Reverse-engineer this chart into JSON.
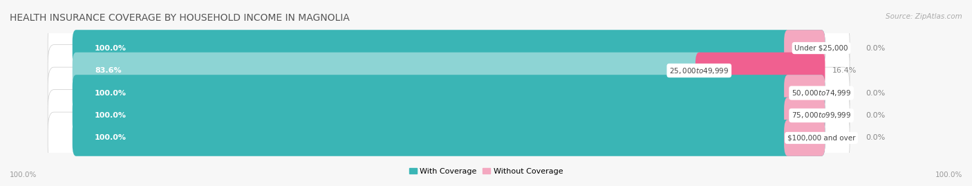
{
  "title": "HEALTH INSURANCE COVERAGE BY HOUSEHOLD INCOME IN MAGNOLIA",
  "source": "Source: ZipAtlas.com",
  "categories": [
    "Under $25,000",
    "$25,000 to $49,999",
    "$50,000 to $74,999",
    "$75,000 to $99,999",
    "$100,000 and over"
  ],
  "with_coverage": [
    100.0,
    83.6,
    100.0,
    100.0,
    100.0
  ],
  "without_coverage": [
    0.0,
    16.4,
    0.0,
    0.0,
    0.0
  ],
  "color_with": "#3ab5b5",
  "color_with_light": "#8dd4d4",
  "color_without_dark": "#f06090",
  "color_without_light": "#f4a8c0",
  "bar_bg": "#e0e0e0",
  "background": "#f7f7f7",
  "axis_label_left": "100.0%",
  "axis_label_right": "100.0%",
  "legend_with": "With Coverage",
  "legend_without": "Without Coverage",
  "title_fontsize": 10,
  "label_fontsize": 8,
  "cat_fontsize": 7.5,
  "bar_height": 0.62,
  "total_width": 100.0,
  "figsize": [
    14.06,
    2.69
  ],
  "dpi": 100
}
